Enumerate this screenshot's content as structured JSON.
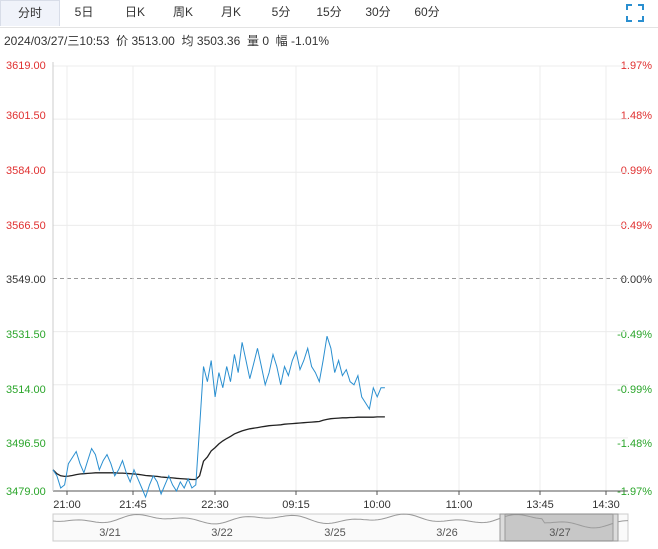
{
  "tabs": [
    {
      "label": "分时",
      "active": true
    },
    {
      "label": "5日",
      "active": false
    },
    {
      "label": "日K",
      "active": false
    },
    {
      "label": "周K",
      "active": false
    },
    {
      "label": "月K",
      "active": false
    },
    {
      "label": "5分",
      "active": false
    },
    {
      "label": "15分",
      "active": false
    },
    {
      "label": "30分",
      "active": false
    },
    {
      "label": "60分",
      "active": false
    }
  ],
  "fullscreen_icon": "fullscreen-icon",
  "info": {
    "datetime": "2024/03/27/三10:53",
    "price_label": "价",
    "price": "3513.00",
    "avg_label": "均",
    "avg": "3503.36",
    "volume_label": "量",
    "volume": "0",
    "change_label": "幅",
    "change": "-1.01%"
  },
  "colors": {
    "up": "#e03030",
    "down": "#2aa52a",
    "price_line": "#2a8fd0",
    "avg_line": "#222222",
    "grid": "#ececec"
  },
  "chart_data": {
    "type": "line",
    "y_ticks": [
      "3619.00",
      "3601.50",
      "3584.00",
      "3566.50",
      "3549.00",
      "3531.50",
      "3514.00",
      "3496.50",
      "3479.00"
    ],
    "pct_ticks": [
      "1.97%",
      "1.48%",
      "0.99%",
      "0.49%",
      "0.00%",
      "-0.49%",
      "-0.99%",
      "-1.48%",
      "-1.97%"
    ],
    "ylim": [
      3479.0,
      3619.0
    ],
    "base_price": 3549.0,
    "x_ticks": [
      "21:00",
      "21:45",
      "22:30",
      "09:15",
      "10:00",
      "11:00",
      "13:45",
      "14:30"
    ],
    "navigator_dates": [
      "3/21",
      "3/22",
      "3/25",
      "3/26",
      "3/27"
    ],
    "series": [
      {
        "values": [
          3486,
          3484,
          3480,
          3481,
          3488,
          3490,
          3492,
          3488,
          3485,
          3489,
          3493,
          3491,
          3486,
          3489,
          3491,
          3488,
          3484,
          3486,
          3489,
          3485,
          3482,
          3486,
          3483,
          3480,
          3477,
          3481,
          3484,
          3482,
          3478,
          3481,
          3484,
          3481,
          3479,
          3482,
          3480,
          3483,
          3480,
          3481,
          3500,
          3520,
          3515,
          3522,
          3510,
          3518,
          3513,
          3520,
          3515,
          3524,
          3518,
          3528,
          3522,
          3516,
          3521,
          3526,
          3520,
          3514,
          3518,
          3524,
          3520,
          3514,
          3520,
          3517,
          3522,
          3525,
          3519,
          3522,
          3526,
          3520,
          3518,
          3515,
          3522,
          3530,
          3526,
          3518,
          3522,
          3517,
          3519,
          3515,
          3514,
          3517,
          3510,
          3508,
          3506,
          3513,
          3510,
          3513,
          3513
        ]
      },
      {
        "values": [
          3486.0,
          3484.7,
          3484.0,
          3483.8,
          3483.9,
          3484.1,
          3484.4,
          3484.6,
          3484.7,
          3484.8,
          3484.9,
          3485.0,
          3485.0,
          3485.0,
          3485.0,
          3485.0,
          3485.0,
          3484.9,
          3484.9,
          3484.8,
          3484.7,
          3484.6,
          3484.5,
          3484.3,
          3484.1,
          3484.0,
          3483.9,
          3483.8,
          3483.6,
          3483.5,
          3483.4,
          3483.3,
          3483.2,
          3483.1,
          3483.0,
          3482.9,
          3482.8,
          3482.8,
          3484.0,
          3488.8,
          3490.2,
          3492.2,
          3493.3,
          3494.5,
          3495.5,
          3496.3,
          3497.0,
          3497.8,
          3498.3,
          3498.8,
          3499.2,
          3499.5,
          3499.7,
          3499.9,
          3500.1,
          3500.3,
          3500.5,
          3500.6,
          3500.7,
          3500.8,
          3501.0,
          3501.1,
          3501.2,
          3501.3,
          3501.4,
          3501.5,
          3501.6,
          3501.7,
          3501.8,
          3501.9,
          3502.3,
          3502.6,
          3502.8,
          3502.9,
          3503.0,
          3503.1,
          3503.1,
          3503.2,
          3503.2,
          3503.3,
          3503.3,
          3503.3,
          3503.3,
          3503.3,
          3503.4,
          3503.4,
          3503.4
        ]
      }
    ],
    "grid": true,
    "total_slots": 150
  }
}
